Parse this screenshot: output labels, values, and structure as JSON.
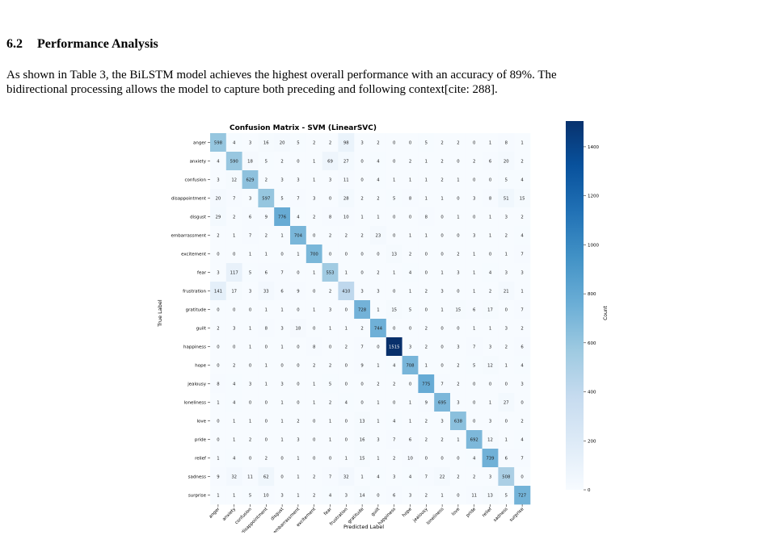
{
  "section": {
    "number": "6.2",
    "title": "Performance Analysis"
  },
  "paragraph": [
    "As shown in Table 3, the BiLSTM model achieves the highest overall performance with an accuracy of 89%. The",
    "bidirectional processing allows the model to capture both preceding and following context[cite: 288]."
  ],
  "chart_data": {
    "type": "heatmap",
    "title": "Confusion Matrix - SVM (LinearSVC)",
    "xlabel": "Predicted Label",
    "ylabel": "True Label",
    "colorbar_label": "Count",
    "colorbar_ticks": [
      0,
      200,
      400,
      600,
      800,
      1000,
      1200,
      1400
    ],
    "vmin": 0,
    "vmax": 1515,
    "colormap": "Blues",
    "labels": [
      "anger",
      "anxiety",
      "confusion",
      "disappointment",
      "disgust",
      "embarrassment",
      "excitement",
      "fear",
      "frustration",
      "gratitude",
      "guilt",
      "happiness",
      "hope",
      "jealousy",
      "loneliness",
      "love",
      "pride",
      "relief",
      "sadness",
      "surprise"
    ],
    "matrix": [
      [
        598,
        4,
        3,
        16,
        20,
        5,
        2,
        2,
        98,
        3,
        2,
        0,
        0,
        5,
        2,
        2,
        0,
        1,
        8,
        1
      ],
      [
        4,
        590,
        18,
        5,
        2,
        0,
        1,
        69,
        27,
        0,
        4,
        0,
        2,
        1,
        2,
        0,
        2,
        6,
        20,
        2
      ],
      [
        3,
        12,
        629,
        2,
        3,
        3,
        1,
        3,
        11,
        0,
        4,
        1,
        1,
        1,
        2,
        1,
        0,
        0,
        5,
        4
      ],
      [
        20,
        7,
        3,
        597,
        5,
        7,
        3,
        0,
        28,
        2,
        2,
        5,
        8,
        1,
        1,
        0,
        3,
        8,
        51,
        15
      ],
      [
        29,
        2,
        6,
        9,
        776,
        4,
        2,
        8,
        10,
        1,
        1,
        0,
        0,
        8,
        0,
        1,
        0,
        1,
        3,
        2
      ],
      [
        2,
        1,
        7,
        2,
        1,
        704,
        0,
        2,
        2,
        2,
        23,
        0,
        1,
        1,
        0,
        0,
        3,
        1,
        2,
        4
      ],
      [
        0,
        0,
        1,
        1,
        0,
        1,
        700,
        0,
        0,
        0,
        0,
        13,
        2,
        0,
        0,
        2,
        1,
        0,
        1,
        7
      ],
      [
        3,
        117,
        5,
        6,
        7,
        0,
        1,
        553,
        1,
        0,
        2,
        1,
        4,
        0,
        1,
        3,
        1,
        4,
        3,
        3
      ],
      [
        141,
        17,
        3,
        33,
        6,
        9,
        0,
        2,
        410,
        3,
        3,
        0,
        1,
        2,
        3,
        0,
        1,
        2,
        21,
        1
      ],
      [
        0,
        0,
        0,
        1,
        1,
        0,
        1,
        3,
        0,
        728,
        1,
        15,
        5,
        0,
        1,
        15,
        6,
        17,
        0,
        7
      ],
      [
        2,
        3,
        1,
        8,
        3,
        18,
        0,
        1,
        1,
        2,
        744,
        0,
        0,
        2,
        0,
        0,
        1,
        1,
        3,
        2
      ],
      [
        0,
        0,
        1,
        0,
        1,
        0,
        8,
        0,
        2,
        7,
        0,
        1515,
        3,
        2,
        0,
        3,
        7,
        3,
        2,
        6
      ],
      [
        0,
        2,
        0,
        1,
        0,
        0,
        2,
        2,
        0,
        9,
        1,
        4,
        708,
        1,
        0,
        2,
        5,
        12,
        1,
        4
      ],
      [
        8,
        4,
        3,
        1,
        3,
        0,
        1,
        5,
        0,
        0,
        2,
        2,
        0,
        775,
        7,
        2,
        0,
        0,
        0,
        3
      ],
      [
        1,
        4,
        0,
        0,
        1,
        0,
        1,
        2,
        4,
        0,
        1,
        0,
        1,
        9,
        695,
        3,
        0,
        1,
        27,
        0
      ],
      [
        0,
        1,
        1,
        0,
        1,
        2,
        0,
        1,
        0,
        13,
        1,
        4,
        1,
        2,
        3,
        638,
        0,
        3,
        0,
        2
      ],
      [
        0,
        1,
        2,
        0,
        1,
        3,
        0,
        1,
        0,
        16,
        3,
        7,
        6,
        2,
        2,
        1,
        692,
        12,
        1,
        4
      ],
      [
        1,
        4,
        0,
        2,
        0,
        1,
        0,
        0,
        1,
        15,
        1,
        2,
        10,
        0,
        0,
        0,
        4,
        739,
        6,
        7
      ],
      [
        9,
        32,
        11,
        62,
        0,
        1,
        2,
        7,
        32,
        1,
        4,
        3,
        4,
        7,
        22,
        2,
        2,
        3,
        508,
        0
      ],
      [
        1,
        1,
        5,
        10,
        3,
        1,
        2,
        4,
        3,
        14,
        0,
        6,
        3,
        2,
        1,
        0,
        11,
        13,
        5,
        727
      ]
    ]
  }
}
